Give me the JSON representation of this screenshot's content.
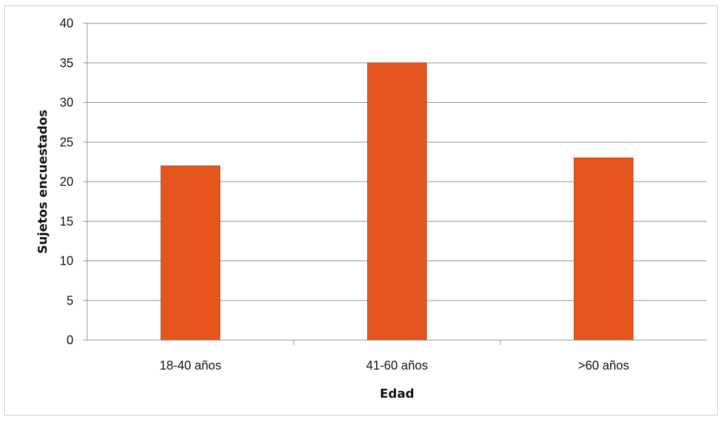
{
  "chart_data": {
    "type": "bar",
    "categories": [
      "18-40 años",
      "41-60 años",
      ">60 años"
    ],
    "values": [
      22,
      35,
      23
    ],
    "title": "",
    "xlabel": "Edad",
    "ylabel": "Sujetos encuestados",
    "ylim": [
      0,
      40
    ],
    "yticks": [
      0,
      5,
      10,
      15,
      20,
      25,
      30,
      35,
      40
    ],
    "grid": true,
    "legend": "none",
    "bar_color": "#e5561f",
    "bar_edge_color": "#b83a10",
    "grid_color": "#8c8c8c"
  }
}
